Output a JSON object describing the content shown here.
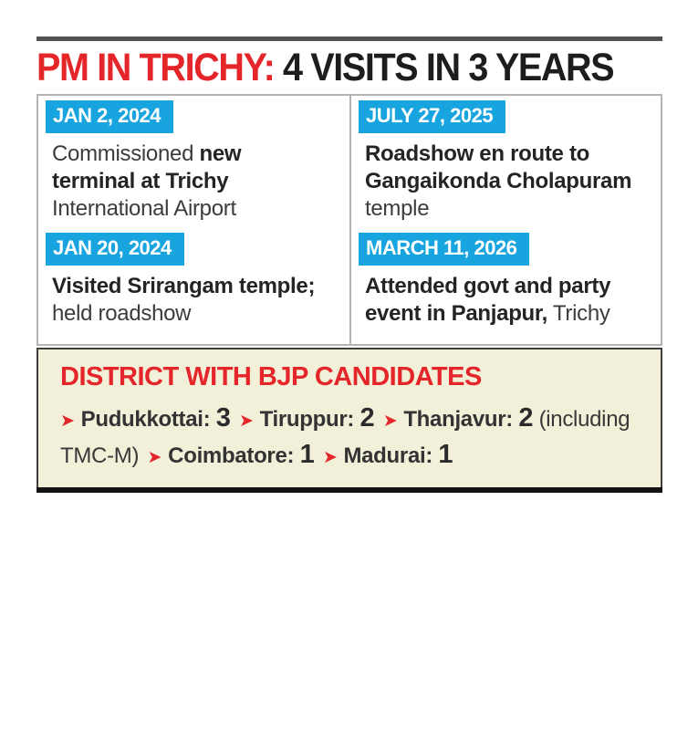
{
  "header": {
    "title_red": "PM IN TRICHY:",
    "title_black": " 4 VISITS IN 3 YEARS"
  },
  "timeline": {
    "columns": [
      {
        "entries": [
          {
            "date": "JAN 2, 2024",
            "text_parts": [
              {
                "t": "Commissioned ",
                "b": false
              },
              {
                "t": "new\nterminal at Trichy",
                "b": true
              },
              {
                "t": "\nInternational Airport",
                "b": false
              }
            ]
          },
          {
            "date": "JAN 20, 2024",
            "text_parts": [
              {
                "t": "Visited Srirangam temple;",
                "b": true
              },
              {
                "t": "\nheld roadshow",
                "b": false
              }
            ]
          }
        ]
      },
      {
        "entries": [
          {
            "date": "JULY 27, 2025",
            "text_parts": [
              {
                "t": "Roadshow en route to\nGangaikonda Cholapuram",
                "b": true
              },
              {
                "t": "\ntemple",
                "b": false
              }
            ]
          },
          {
            "date": "MARCH 11, 2026",
            "text_parts": [
              {
                "t": "Attended govt and party\nevent in Panjapur,",
                "b": true
              },
              {
                "t": " Trichy",
                "b": false
              }
            ]
          }
        ]
      }
    ]
  },
  "candidates_box": {
    "title": "DISTRICT WITH BJP CANDIDATES",
    "bullet": "➤",
    "items": [
      {
        "district": "Pudukkottai",
        "count": "3",
        "suffix": ""
      },
      {
        "district": "Tiruppur",
        "count": "2",
        "suffix": ""
      },
      {
        "district": "Thanjavur",
        "count": "2",
        "suffix": " (including TMC-M)"
      },
      {
        "district": "Coimbatore",
        "count": "1",
        "suffix": ""
      },
      {
        "district": "Madurai",
        "count": "1",
        "suffix": ""
      }
    ]
  },
  "colors": {
    "accent-red": "#e4252a",
    "accent-cyan": "#18a4de",
    "cream": "#f3f0da",
    "border-gray": "#b4b4b4",
    "bar-gray": "#515151",
    "bar-dark": "#141414"
  }
}
